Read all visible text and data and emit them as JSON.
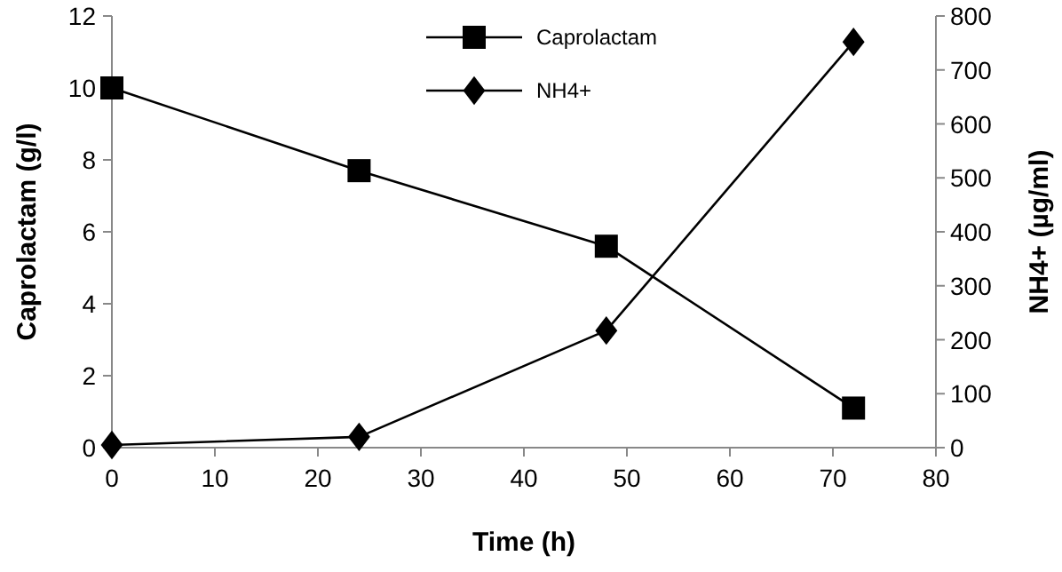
{
  "chart_data": {
    "type": "line",
    "xlabel": "Time (h)",
    "ylabel": "Caprolactam  (g/l)",
    "y2label": "NH4+ (µg/ml)",
    "x": [
      0,
      24,
      48,
      72
    ],
    "xlim": [
      0,
      80
    ],
    "xticks": [
      0,
      10,
      20,
      30,
      40,
      50,
      60,
      70,
      80
    ],
    "ylim": [
      0,
      12
    ],
    "yticks": [
      0,
      2,
      4,
      6,
      8,
      10,
      12
    ],
    "y2lim": [
      0,
      800
    ],
    "y2ticks": [
      0,
      100,
      200,
      300,
      400,
      500,
      600,
      700,
      800
    ],
    "series": [
      {
        "name": "Caprolactam",
        "color": "#000000",
        "values": [
          10,
          7.7,
          5.6,
          1.1
        ],
        "marker": "square"
      },
      {
        "name": "NH4+",
        "color": "#000000",
        "values": [
          5,
          20,
          217,
          752
        ],
        "axis": "y2",
        "marker": "diamond"
      }
    ],
    "legend": "top",
    "grid": false,
    "line_style": "solid"
  }
}
